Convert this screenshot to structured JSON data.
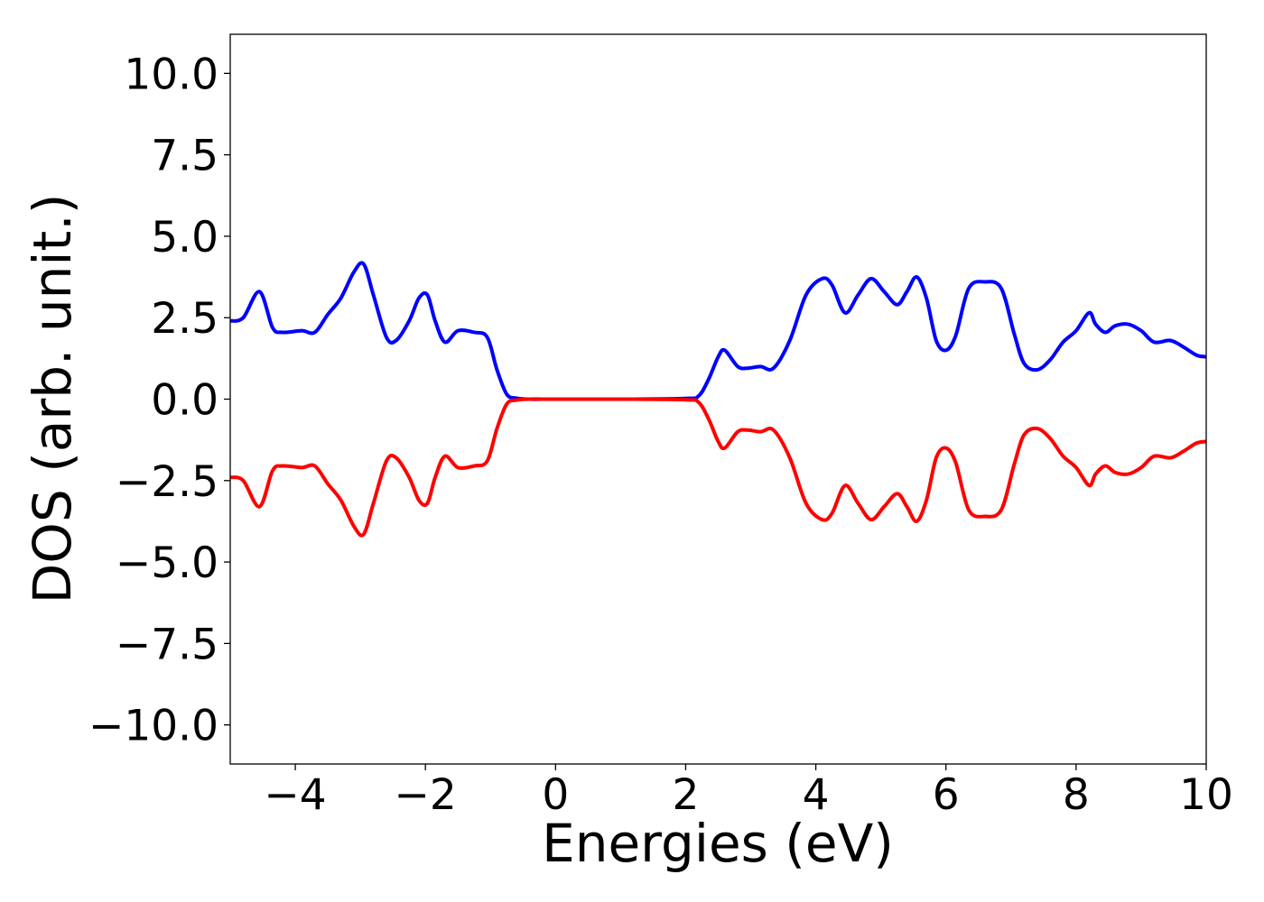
{
  "chart_data": {
    "type": "line",
    "title": "",
    "xlabel": "Energies (eV)",
    "ylabel": "DOS (arb. unit.)",
    "xlim": [
      -5,
      10
    ],
    "ylim": [
      -11.2,
      11.2
    ],
    "xticks": [
      -4,
      -2,
      0,
      2,
      4,
      6,
      8,
      10
    ],
    "xtick_labels": [
      "−4",
      "−2",
      "0",
      "2",
      "4",
      "6",
      "8",
      "10"
    ],
    "yticks": [
      10,
      7.5,
      5,
      2.5,
      0,
      -2.5,
      -5,
      -7.5,
      -10
    ],
    "ytick_labels": [
      "10.0",
      "7.5",
      "5.0",
      "2.5",
      "0.0",
      "−2.5",
      "−5.0",
      "−7.5",
      "−10.0"
    ],
    "grid": false,
    "legend": "none",
    "series": [
      {
        "color": "#0000ff",
        "x": [
          -5.0,
          -4.8,
          -4.55,
          -4.35,
          -4.2,
          -3.9,
          -3.7,
          -3.5,
          -3.3,
          -3.1,
          -2.95,
          -2.8,
          -2.6,
          -2.45,
          -2.25,
          -2.1,
          -1.97,
          -1.85,
          -1.7,
          -1.5,
          -1.25,
          -1.05,
          -0.9,
          -0.75,
          -0.6,
          -0.4,
          0.0,
          1.0,
          2.0,
          2.2,
          2.35,
          2.5,
          2.6,
          2.8,
          2.95,
          3.15,
          3.35,
          3.6,
          3.85,
          4.1,
          4.25,
          4.45,
          4.65,
          4.85,
          5.05,
          5.25,
          5.4,
          5.55,
          5.7,
          5.85,
          6.0,
          6.15,
          6.35,
          6.6,
          6.85,
          7.05,
          7.2,
          7.4,
          7.6,
          7.8,
          8.0,
          8.2,
          8.3,
          8.45,
          8.6,
          8.8,
          9.0,
          9.2,
          9.45,
          9.65,
          9.85,
          10.0
        ],
        "y": [
          2.4,
          2.5,
          3.3,
          2.2,
          2.05,
          2.1,
          2.05,
          2.6,
          3.1,
          3.9,
          4.15,
          3.2,
          1.9,
          1.8,
          2.4,
          3.1,
          3.2,
          2.4,
          1.75,
          2.1,
          2.05,
          1.9,
          0.9,
          0.15,
          0.03,
          0.0,
          0.0,
          0.0,
          0.02,
          0.1,
          0.6,
          1.3,
          1.5,
          1.0,
          0.95,
          1.0,
          0.95,
          1.8,
          3.2,
          3.7,
          3.5,
          2.65,
          3.2,
          3.7,
          3.3,
          2.9,
          3.3,
          3.75,
          3.1,
          1.8,
          1.5,
          1.95,
          3.4,
          3.6,
          3.4,
          2.0,
          1.1,
          0.9,
          1.2,
          1.75,
          2.1,
          2.65,
          2.3,
          2.05,
          2.25,
          2.3,
          2.1,
          1.75,
          1.8,
          1.6,
          1.35,
          1.3
        ]
      },
      {
        "color": "#ff0000",
        "x": [
          -5.0,
          -4.8,
          -4.55,
          -4.35,
          -4.2,
          -3.9,
          -3.7,
          -3.5,
          -3.3,
          -3.1,
          -2.95,
          -2.8,
          -2.6,
          -2.45,
          -2.25,
          -2.1,
          -1.97,
          -1.85,
          -1.7,
          -1.5,
          -1.25,
          -1.05,
          -0.9,
          -0.75,
          -0.6,
          -0.4,
          0.0,
          1.0,
          2.0,
          2.2,
          2.35,
          2.5,
          2.6,
          2.8,
          2.95,
          3.15,
          3.35,
          3.6,
          3.85,
          4.1,
          4.25,
          4.45,
          4.65,
          4.85,
          5.05,
          5.25,
          5.4,
          5.55,
          5.7,
          5.85,
          6.0,
          6.15,
          6.35,
          6.6,
          6.85,
          7.05,
          7.2,
          7.4,
          7.6,
          7.8,
          8.0,
          8.2,
          8.3,
          8.45,
          8.6,
          8.8,
          9.0,
          9.2,
          9.45,
          9.65,
          9.85,
          10.0
        ],
        "y": [
          -2.4,
          -2.5,
          -3.3,
          -2.2,
          -2.05,
          -2.1,
          -2.05,
          -2.6,
          -3.1,
          -3.9,
          -4.15,
          -3.2,
          -1.9,
          -1.8,
          -2.4,
          -3.1,
          -3.2,
          -2.4,
          -1.75,
          -2.1,
          -2.05,
          -1.9,
          -0.9,
          -0.15,
          -0.03,
          0.0,
          0.0,
          0.0,
          -0.02,
          -0.1,
          -0.6,
          -1.3,
          -1.5,
          -1.0,
          -0.95,
          -1.0,
          -0.95,
          -1.8,
          -3.2,
          -3.7,
          -3.5,
          -2.65,
          -3.2,
          -3.7,
          -3.3,
          -2.9,
          -3.3,
          -3.75,
          -3.1,
          -1.8,
          -1.5,
          -1.95,
          -3.4,
          -3.6,
          -3.4,
          -2.0,
          -1.1,
          -0.9,
          -1.2,
          -1.75,
          -2.1,
          -2.65,
          -2.3,
          -2.05,
          -2.25,
          -2.3,
          -2.1,
          -1.75,
          -1.8,
          -1.6,
          -1.35,
          -1.3
        ]
      }
    ]
  }
}
